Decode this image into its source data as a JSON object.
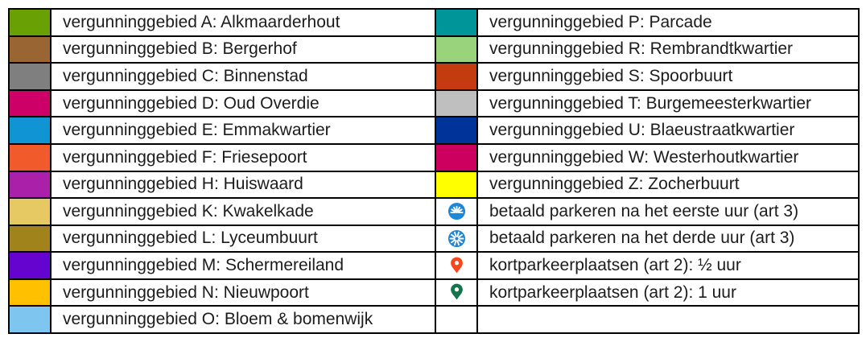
{
  "colors": {
    "border": "#000000",
    "text": "#1c1c1c",
    "background": "#ffffff"
  },
  "rows": [
    {
      "left": {
        "key": "A",
        "color": "#69A003",
        "label": "vergunninggebied A: Alkmaarderhout"
      },
      "right": {
        "key": "P",
        "color": "#009699",
        "label": "vergunninggebied P: Parcade"
      }
    },
    {
      "left": {
        "key": "B",
        "color": "#996633",
        "label": "vergunninggebied B: Bergerhof"
      },
      "right": {
        "key": "R",
        "color": "#99D47D",
        "label": "vergunninggebied R: Rembrandtkwartier"
      }
    },
    {
      "left": {
        "key": "C",
        "color": "#7F7F7F",
        "label": "vergunninggebied C: Binnenstad"
      },
      "right": {
        "key": "S",
        "color": "#C33B0E",
        "label": "vergunninggebied S: Spoorbuurt"
      }
    },
    {
      "left": {
        "key": "D",
        "color": "#CC0066",
        "label": "vergunninggebied D: Oud Overdie"
      },
      "right": {
        "key": "T",
        "color": "#BFBFBF",
        "label": "vergunninggebied T: Burgemeesterkwartier"
      }
    },
    {
      "left": {
        "key": "E",
        "color": "#1194D4",
        "label": "vergunninggebied E: Emmakwartier"
      },
      "right": {
        "key": "U",
        "color": "#003399",
        "label": "vergunninggebied U: Blaeustraatkwartier"
      }
    },
    {
      "left": {
        "key": "F",
        "color": "#F15B2B",
        "label": "vergunninggebied F: Friesepoort"
      },
      "right": {
        "key": "W",
        "color": "#CC005F",
        "label": "vergunninggebied W: Westerhoutkwartier"
      }
    },
    {
      "left": {
        "key": "H",
        "color": "#AA20A8",
        "label": "vergunninggebied H: Huiswaard"
      },
      "right": {
        "key": "Z",
        "color": "#FFFF00",
        "label": "vergunninggebied Z: Zocherbuurt"
      }
    },
    {
      "left": {
        "key": "K",
        "color": "#E6C963",
        "label": "vergunninggebied K: Kwakelkade"
      },
      "right": {
        "icon": "paid-parking-first-hour-icon",
        "icon_shape": "circle-burst-small",
        "icon_color": "#1E86D4",
        "label": "betaald parkeren na het eerste uur (art 3)"
      }
    },
    {
      "left": {
        "key": "L",
        "color": "#A0841B",
        "label": "vergunninggebied L: Lyceumbuurt"
      },
      "right": {
        "icon": "paid-parking-third-hour-icon",
        "icon_shape": "circle-burst-full",
        "icon_color": "#1E86D4",
        "label": "betaald parkeren na het derde uur (art 3)"
      }
    },
    {
      "left": {
        "key": "M",
        "color": "#6604CF",
        "label": "vergunninggebied M: Schermereiland"
      },
      "right": {
        "icon": "short-stay-half-hour-pin-icon",
        "icon_shape": "map-pin",
        "icon_color": "#FB471E",
        "label": "kortparkeerplaatsen (art 2): ½ uur"
      }
    },
    {
      "left": {
        "key": "N",
        "color": "#FFC000",
        "label": "vergunninggebied N: Nieuwpoort"
      },
      "right": {
        "icon": "short-stay-one-hour-pin-icon",
        "icon_shape": "map-pin",
        "icon_color": "#15744B",
        "label": "kortparkeerplaatsen (art 2): 1 uur"
      }
    },
    {
      "left": {
        "key": "O",
        "color": "#7EC6EF",
        "label": "vergunninggebied O: Bloem & bomenwijk"
      },
      "right": {
        "empty": true
      }
    }
  ]
}
